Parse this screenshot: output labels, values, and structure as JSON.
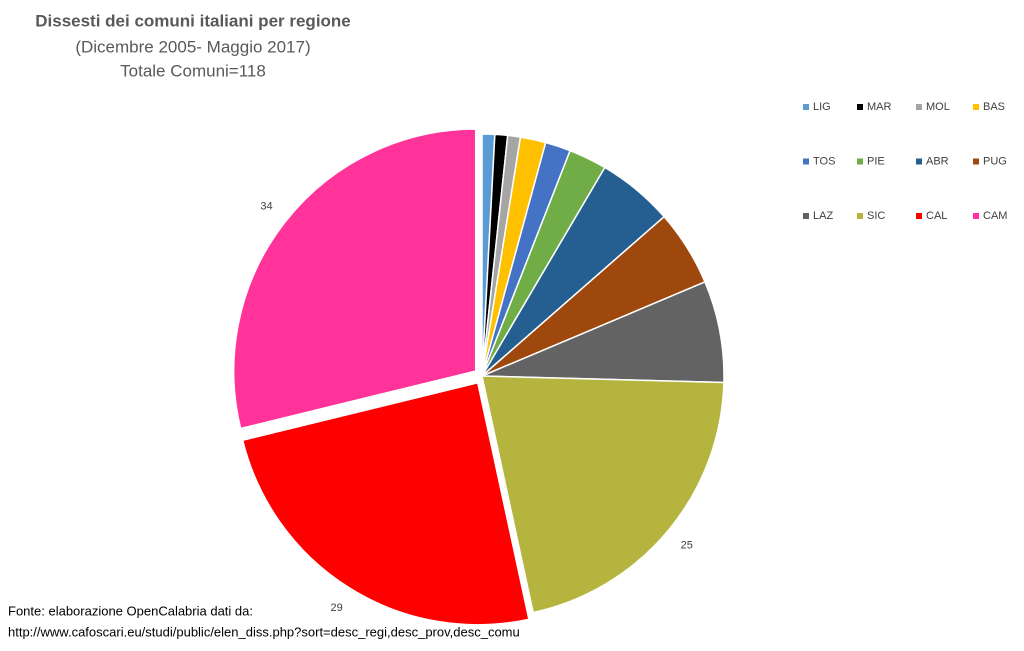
{
  "chart_data": {
    "type": "pie",
    "title": "Dissesti dei comuni italiani per regione",
    "subtitle": [
      "(Dicembre 2005- Maggio 2017)",
      "Totale Comuni=118"
    ],
    "categories": [
      "LIG",
      "MAR",
      "MOL",
      "BAS",
      "TOS",
      "PIE",
      "ABR",
      "PUG",
      "LAZ",
      "SIC",
      "CAL",
      "CAM"
    ],
    "values": [
      1,
      1,
      1,
      2,
      2,
      3,
      6,
      6,
      8,
      25,
      29,
      34
    ],
    "value_labels": [
      null,
      null,
      null,
      null,
      null,
      null,
      null,
      null,
      null,
      "25",
      "29",
      "34"
    ],
    "colors": [
      "#5b9bd5",
      "#000000",
      "#a5a5a5",
      "#ffc000",
      "#4472c4",
      "#70ad47",
      "#255e91",
      "#9e480e",
      "#636363",
      "#b5b43f",
      "#ff0000",
      "#ff3399"
    ],
    "exploded": [
      "CAL",
      "CAM"
    ],
    "legend": "top-right",
    "source": [
      "Fonte: elaborazione OpenCalabria dati da:",
      "http://www.cafoscari.eu/studi/public/elen_diss.php?sort=desc_regi,desc_prov,desc_comu"
    ]
  }
}
